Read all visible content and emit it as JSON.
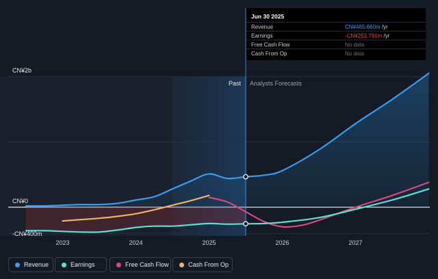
{
  "tooltip": {
    "date": "Jun 30 2025",
    "rows": [
      {
        "label": "Revenue",
        "value": "CN¥465.660m",
        "unit": " /yr",
        "color": "#3b9cef"
      },
      {
        "label": "Earnings",
        "value": "-CN¥253.791m",
        "unit": " /yr",
        "color": "#ef3b4a"
      },
      {
        "label": "Free Cash Flow",
        "value": "No data",
        "unit": "",
        "color": "#6d7480"
      },
      {
        "label": "Cash From Op",
        "value": "No data",
        "unit": "",
        "color": "#6d7480"
      }
    ]
  },
  "legend": [
    {
      "label": "Revenue",
      "color": "#3b9cef"
    },
    {
      "label": "Earnings",
      "color": "#5ce0d6"
    },
    {
      "label": "Free Cash Flow",
      "color": "#d9457f"
    },
    {
      "label": "Cash From Op",
      "color": "#f0b366"
    }
  ],
  "chart_data": {
    "type": "line",
    "y_unit": "CN¥ (millions)",
    "ylim": [
      -400,
      2000
    ],
    "y_tick_labels": [
      {
        "value": 2000,
        "label": "CN¥2b"
      },
      {
        "value": 0,
        "label": "CN¥0"
      },
      {
        "value": -400,
        "label": "-CN¥400m"
      }
    ],
    "xlim": [
      2022.5,
      2028.0
    ],
    "x_tick_labels": [
      "2023",
      "2024",
      "2025",
      "2026",
      "2027"
    ],
    "x_ticks": [
      2023,
      2024,
      2025,
      2026,
      2027
    ],
    "divider_x": 2025.5,
    "region_labels": {
      "past": "Past",
      "forecast": "Analysts Forecasts"
    },
    "series": [
      {
        "name": "Revenue",
        "color": "#3b9cef",
        "x": [
          2022.5,
          2022.75,
          2023.0,
          2023.25,
          2023.5,
          2023.75,
          2024.0,
          2024.25,
          2024.5,
          2024.75,
          2025.0,
          2025.25,
          2025.5,
          2025.75,
          2026.0,
          2026.5,
          2027.0,
          2027.5,
          2028.0
        ],
        "y": [
          20,
          20,
          30,
          40,
          40,
          60,
          110,
          160,
          280,
          400,
          510,
          440,
          466,
          490,
          560,
          880,
          1280,
          1650,
          2050
        ]
      },
      {
        "name": "Earnings",
        "color": "#5ce0d6",
        "x": [
          2022.5,
          2022.75,
          2023.0,
          2023.25,
          2023.5,
          2023.75,
          2024.0,
          2024.25,
          2024.5,
          2024.75,
          2025.0,
          2025.25,
          2025.5,
          2025.75,
          2026.0,
          2026.5,
          2027.0,
          2027.5,
          2028.0
        ],
        "y": [
          -360,
          -360,
          -370,
          -380,
          -380,
          -350,
          -310,
          -290,
          -290,
          -270,
          -250,
          -260,
          -254,
          -250,
          -230,
          -160,
          -30,
          110,
          280
        ]
      },
      {
        "name": "Free Cash Flow",
        "color": "#d9457f",
        "x": [
          2025.0,
          2025.25,
          2025.5,
          2025.75,
          2026.0,
          2026.25,
          2026.5,
          2027.0,
          2027.5,
          2028.0
        ],
        "y": [
          150,
          80,
          -70,
          -220,
          -300,
          -280,
          -200,
          0,
          180,
          380
        ]
      },
      {
        "name": "Cash From Op",
        "color": "#f0b366",
        "x": [
          2023.0,
          2023.25,
          2023.5,
          2023.75,
          2024.0,
          2024.25,
          2024.5,
          2024.75,
          2025.0
        ],
        "y": [
          -210,
          -190,
          -170,
          -140,
          -100,
          -40,
          30,
          100,
          180
        ]
      }
    ]
  }
}
